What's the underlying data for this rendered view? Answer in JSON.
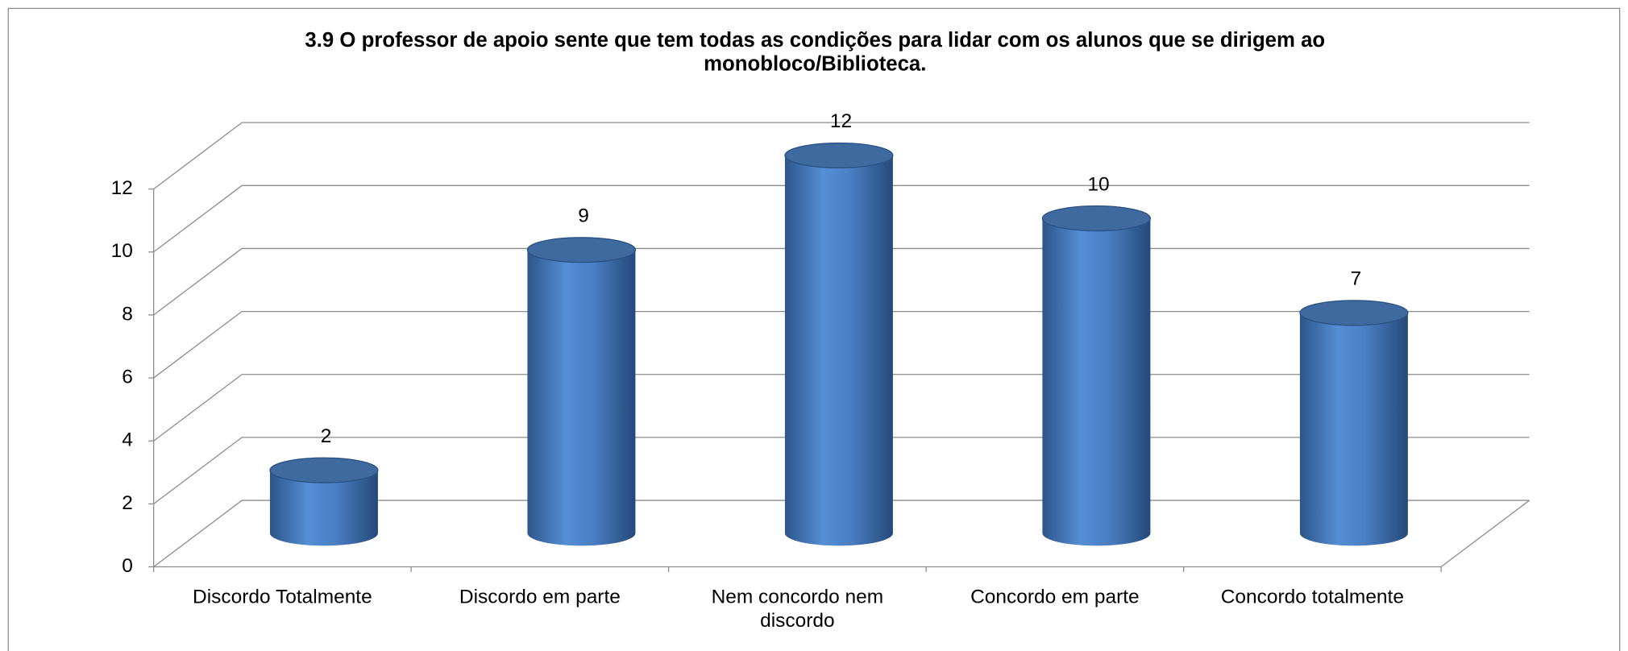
{
  "chart_data": {
    "type": "cylinder_bar",
    "title": "3.9 O professor de apoio sente que tem todas as condições para lidar com os alunos que se dirigem ao monobloco/Biblioteca.",
    "categories": [
      "Discordo Totalmente",
      "Discordo em parte",
      "Nem concordo nem discordo",
      "Concordo em parte",
      "Concordo totalmente"
    ],
    "values": [
      2,
      9,
      12,
      10,
      7
    ],
    "color": "#4f81bd",
    "ylim": [
      0,
      12
    ],
    "yticks": [
      0,
      2,
      4,
      6,
      8,
      10,
      12
    ],
    "grid": true
  }
}
